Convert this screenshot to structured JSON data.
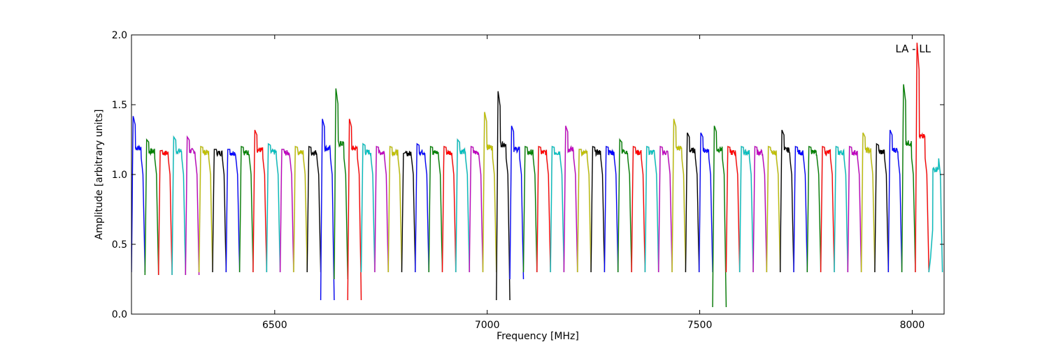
{
  "chart_data": {
    "type": "line",
    "title": "",
    "xlabel": "Frequency [MHz]",
    "ylabel": "Amplitude [arbitrary units]",
    "xlim": [
      6163,
      8075
    ],
    "ylim": [
      0.0,
      2.0
    ],
    "xticks": [
      6500,
      7000,
      7500,
      8000
    ],
    "xtick_labels": [
      "6500",
      "7000",
      "7500",
      "8000"
    ],
    "yticks": [
      0.0,
      0.5,
      1.0,
      1.5,
      2.0
    ],
    "ytick_labels": [
      "0.0",
      "0.5",
      "1.0",
      "1.5",
      "2.0"
    ],
    "grid": false,
    "annotation": "LA - LL",
    "annotation_position": "top-right",
    "raw_color": "#c0c0c0",
    "color_cycle": [
      "#0000ff",
      "#008000",
      "#ff0000",
      "#00bfbf",
      "#bf00bf",
      "#bfbf00",
      "#000000"
    ],
    "series": {
      "channel_width_mhz": 31.8,
      "start_mhz": 6163,
      "count": 60,
      "plateau_levels": [
        1.42,
        1.25,
        1.17,
        1.27,
        1.27,
        1.2,
        1.18,
        1.18,
        1.2,
        1.32,
        1.22,
        1.18,
        1.2,
        1.2,
        1.4,
        1.62,
        1.4,
        1.22,
        1.2,
        1.2,
        1.15,
        1.22,
        1.2,
        1.2,
        1.25,
        1.2,
        1.45,
        1.6,
        1.35,
        1.2,
        1.2,
        1.2,
        1.35,
        1.18,
        1.2,
        1.2,
        1.25,
        1.2,
        1.2,
        1.2,
        1.4,
        1.3,
        1.3,
        1.35,
        1.2,
        1.2,
        1.2,
        1.2,
        1.32,
        1.2,
        1.2,
        1.2,
        1.2,
        1.2,
        1.3,
        1.22,
        1.32,
        1.65,
        1.95,
        0.4
      ],
      "dip_levels": [
        0.3,
        0.28,
        0.28,
        0.28,
        0.28,
        0.3,
        0.3,
        0.3,
        0.3,
        0.3,
        0.3,
        0.3,
        0.3,
        0.3,
        0.1,
        0.25,
        0.1,
        0.3,
        0.3,
        0.3,
        0.3,
        0.3,
        0.3,
        0.3,
        0.3,
        0.3,
        0.3,
        0.1,
        0.25,
        0.3,
        0.3,
        0.3,
        0.3,
        0.3,
        0.3,
        0.3,
        0.3,
        0.3,
        0.3,
        0.3,
        0.3,
        0.3,
        0.3,
        0.05,
        0.3,
        0.3,
        0.3,
        0.3,
        0.3,
        0.3,
        0.3,
        0.3,
        0.3,
        0.3,
        0.3,
        0.3,
        0.3,
        0.3,
        0.3,
        0.3
      ]
    }
  }
}
